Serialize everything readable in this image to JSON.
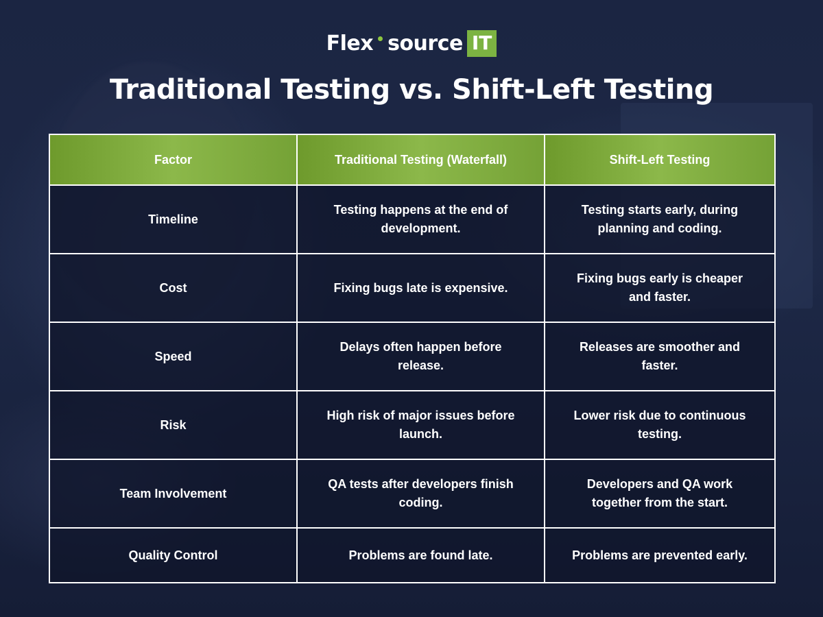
{
  "brand": {
    "word_left": "Flex",
    "word_right": "source",
    "badge": "IT",
    "accent_color": "#7cb342"
  },
  "title": "Traditional Testing vs. Shift-Left Testing",
  "table": {
    "headers": [
      "Factor",
      "Traditional Testing (Waterfall)",
      "Shift-Left Testing"
    ],
    "rows": [
      [
        "Timeline",
        "Testing happens at the end of development.",
        "Testing starts early, during planning and coding."
      ],
      [
        "Cost",
        "Fixing bugs late is expensive.",
        "Fixing bugs early is cheaper and faster."
      ],
      [
        "Speed",
        "Delays often happen before release.",
        "Releases are smoother and faster."
      ],
      [
        "Risk",
        "High risk of major issues before launch.",
        "Lower risk due to continuous testing."
      ],
      [
        "Team Involvement",
        "QA tests after developers finish coding.",
        "Developers and QA work together from the start."
      ],
      [
        "Quality Control",
        "Problems are found late.",
        "Problems are prevented early."
      ]
    ],
    "header_color": "#8cb84a",
    "border_color": "#ffffff"
  }
}
